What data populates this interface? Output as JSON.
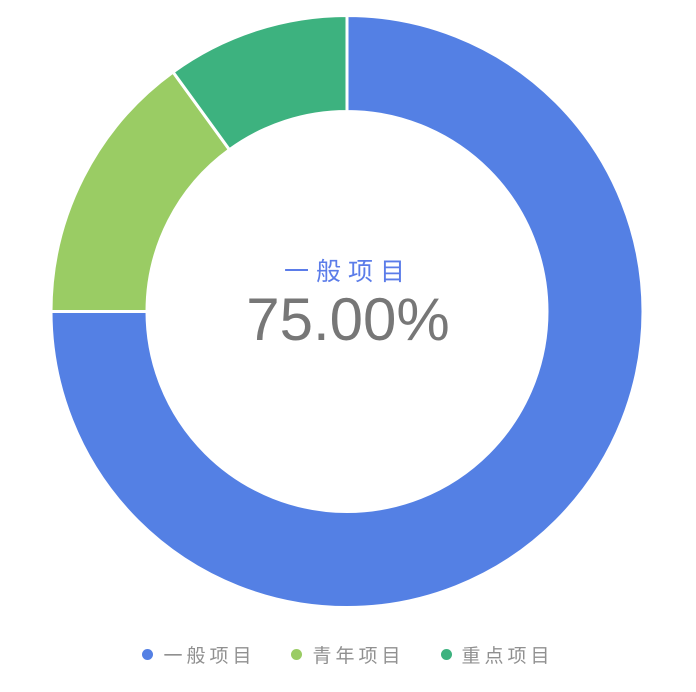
{
  "chart_data": {
    "type": "pie",
    "subtype": "donut",
    "title": "",
    "legend_position": "bottom",
    "inner_radius_ratio": 0.676,
    "start_angle_deg": 0,
    "direction": "clockwise",
    "slices": [
      {
        "id": "general-project",
        "label": "一般项目",
        "value": 75.0,
        "color": "#5480e4"
      },
      {
        "id": "youth-project",
        "label": "青年项目",
        "value": 15.0,
        "color": "#9acc64"
      },
      {
        "id": "key-project",
        "label": "重点项目",
        "value": 10.0,
        "color": "#3db27f"
      }
    ],
    "center_label": {
      "title": "一般项目",
      "value": "75.00%"
    }
  },
  "colors": {
    "background": "#ffffff",
    "slice_border": "#ffffff",
    "center_title_text": "#5b7ce9",
    "center_value_text": "#777777",
    "legend_text": "#909090"
  }
}
